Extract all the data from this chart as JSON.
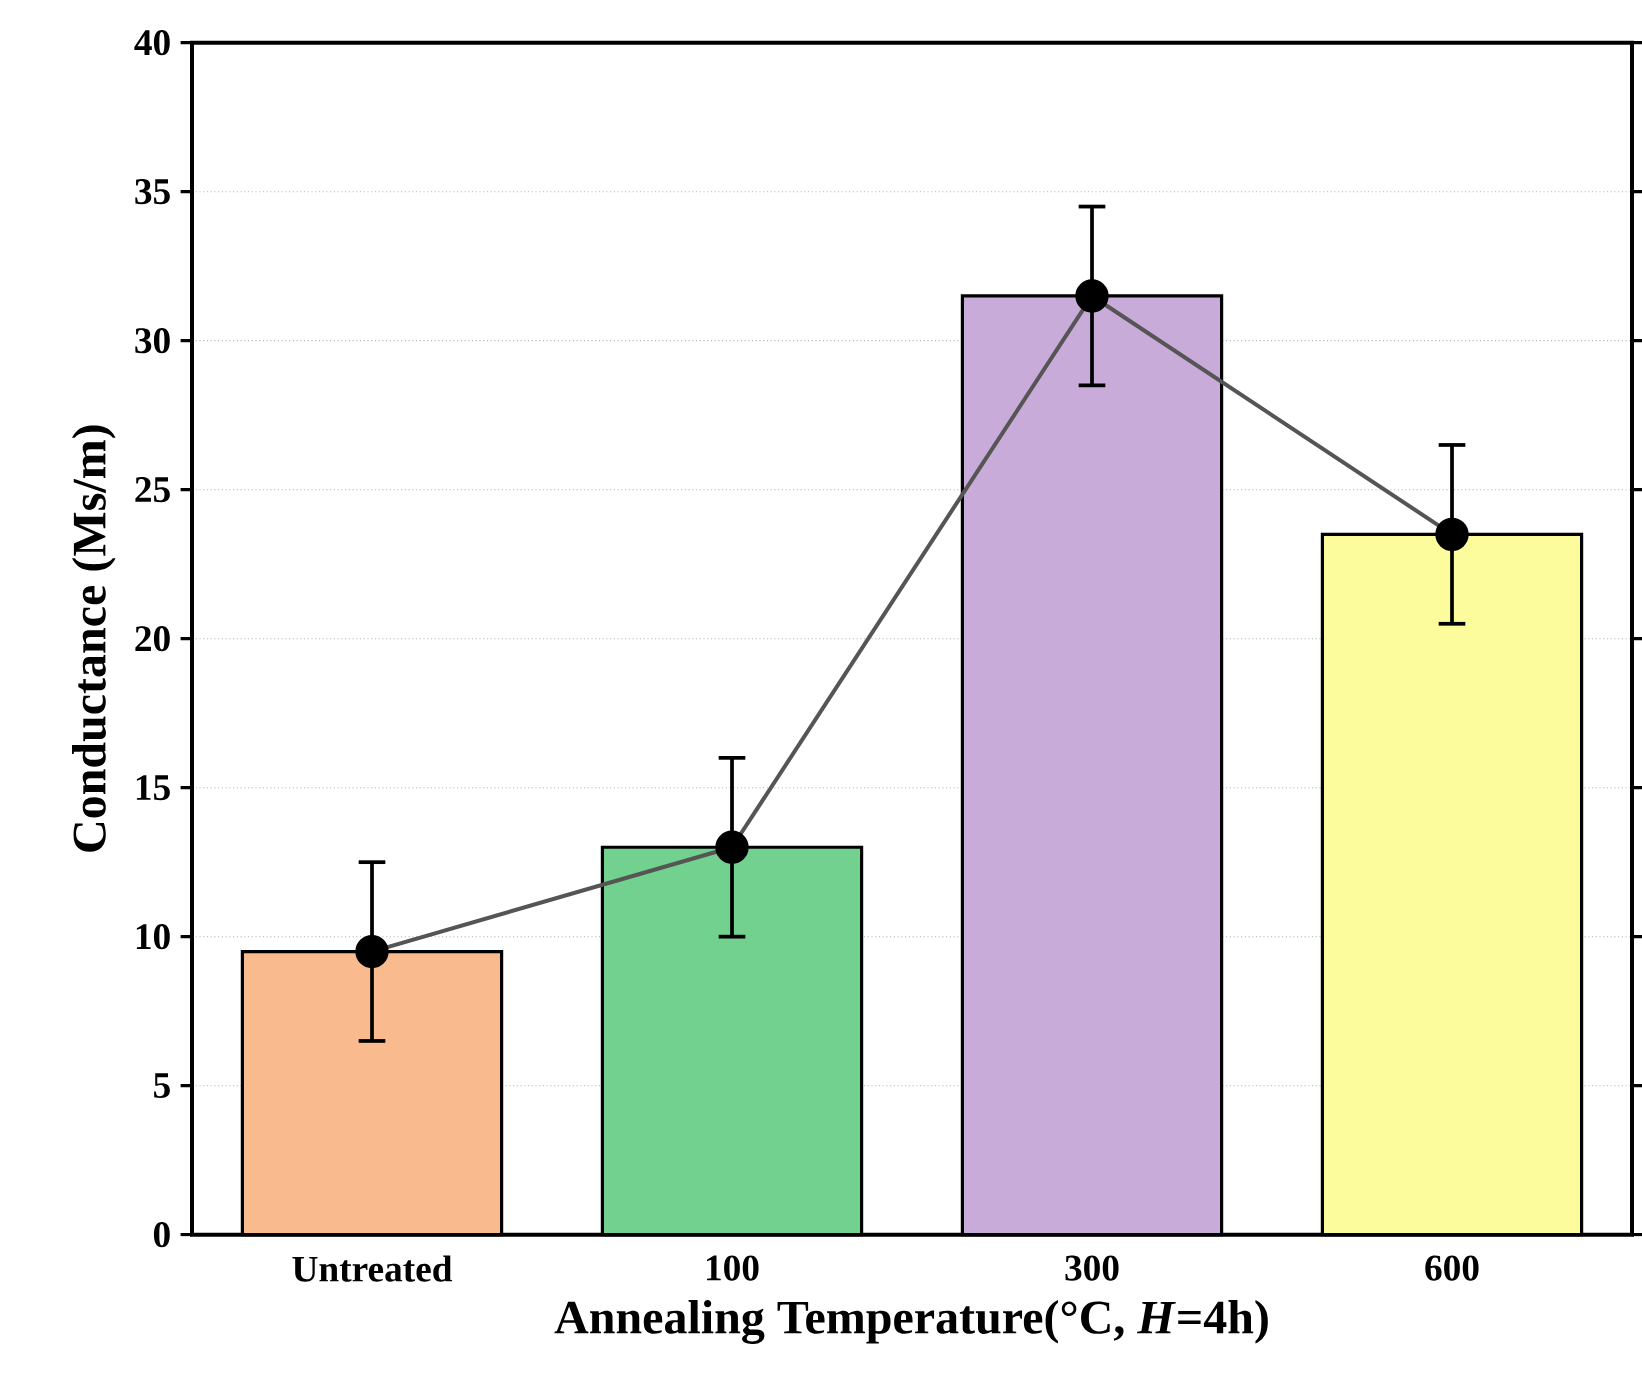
{
  "chart_data": {
    "type": "bar",
    "xlabel": "Annealing Temperature(°C, *H*=4h)",
    "ylabel": "Conductance (Ms/m)",
    "categories": [
      "Untreated",
      "100",
      "300",
      "600"
    ],
    "series": [
      {
        "colors": [
          "#f9bb8e",
          "#72d18e",
          "#c8abd8",
          "#fcfc9c"
        ],
        "values": [
          9.5,
          13,
          31.5,
          23.5
        ],
        "errors": [
          3,
          3,
          3,
          3
        ]
      },
      {
        "type": "line",
        "color": "#555555",
        "marker": "circle",
        "values": [
          9.5,
          13,
          31.5,
          23.5
        ]
      }
    ],
    "ylim": [
      0,
      40
    ],
    "yticks": [
      0,
      5,
      10,
      15,
      20,
      25,
      30,
      35,
      40
    ],
    "grid": "y"
  }
}
